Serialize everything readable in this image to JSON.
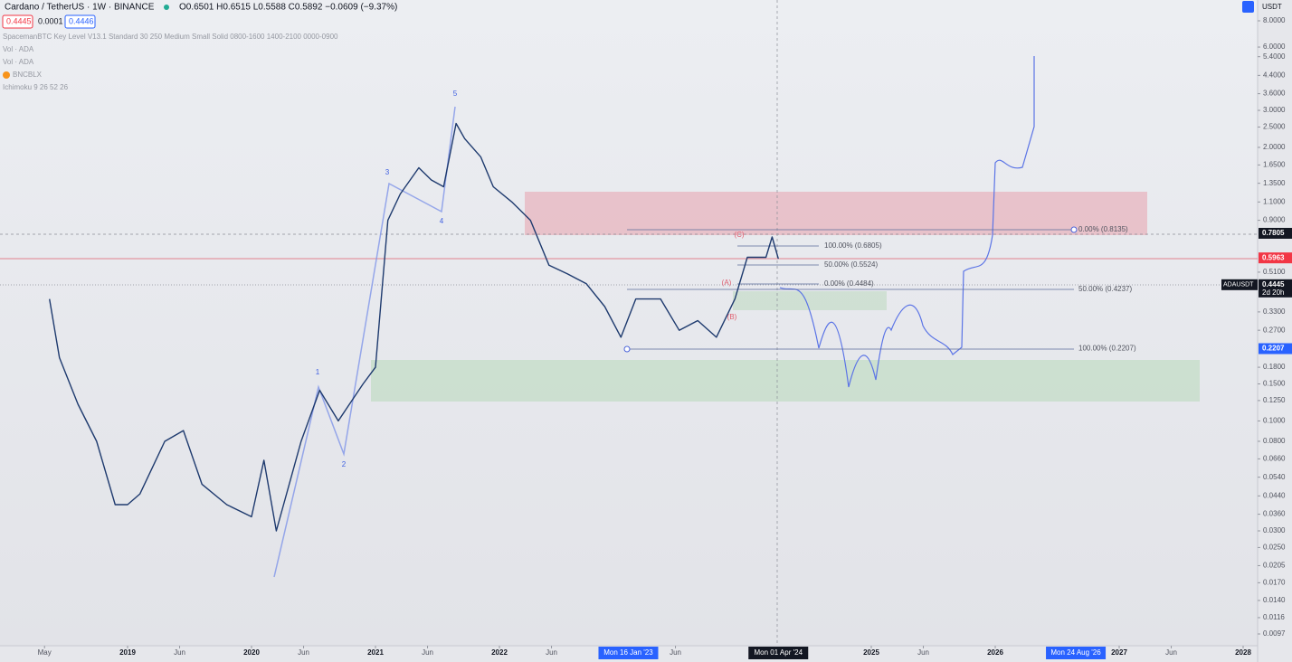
{
  "header": {
    "symbol": "Cardano / TetherUS · 1W · BINANCE",
    "ohlc": "O0.6501 H0.6515 L0.5588 C0.5892 −0.0609 (−9.37%)",
    "bid": "0.4445",
    "spread": "0.0001",
    "ask": "0.4446",
    "currency": "USDT"
  },
  "indicators": [
    "SpacemanBTC Key Level V13.1 Standard 30 250 Medium Small Solid 0800-1600 1400-2100 0000-0900",
    "Vol · ADA",
    "Vol · ADA",
    "BNCBLX",
    "Ichimoku 9 26 52 26"
  ],
  "wave_labels": [
    "1",
    "2",
    "3",
    "4",
    "5",
    "(A)",
    "(B)",
    "(C)"
  ],
  "chart_data": {
    "type": "line",
    "log_scale": true,
    "series": [
      {
        "name": "ADAUSDT",
        "color": "#1e3a6e",
        "x": [
          2018.37,
          2018.45,
          2018.6,
          2018.75,
          2018.9,
          2019.0,
          2019.1,
          2019.3,
          2019.45,
          2019.6,
          2019.8,
          2020.0,
          2020.1,
          2020.2,
          2020.4,
          2020.55,
          2020.7,
          2020.9,
          2021.0,
          2021.1,
          2021.2,
          2021.35,
          2021.45,
          2021.55,
          2021.65,
          2021.72,
          2021.85,
          2021.95,
          2022.1,
          2022.25,
          2022.4,
          2022.55,
          2022.7,
          2022.85,
          2022.98,
          2023.1,
          2023.3,
          2023.45,
          2023.6,
          2023.75,
          2023.9,
          2024.0,
          2024.15,
          2024.2,
          2024.25
        ],
        "values": [
          0.38,
          0.2,
          0.12,
          0.08,
          0.04,
          0.04,
          0.045,
          0.08,
          0.09,
          0.05,
          0.04,
          0.035,
          0.065,
          0.03,
          0.08,
          0.14,
          0.1,
          0.15,
          0.18,
          0.9,
          1.2,
          1.6,
          1.4,
          1.3,
          2.6,
          2.2,
          1.8,
          1.3,
          1.1,
          0.9,
          0.55,
          0.5,
          0.45,
          0.35,
          0.25,
          0.38,
          0.38,
          0.27,
          0.3,
          0.25,
          0.38,
          0.6,
          0.6,
          0.75,
          0.59
        ]
      }
    ],
    "yticks": [
      {
        "value": 8,
        "label": "8.0000"
      },
      {
        "value": 6,
        "label": "6.0000"
      },
      {
        "value": 5.4,
        "label": "5.4000"
      },
      {
        "value": 4.4,
        "label": "4.4000"
      },
      {
        "value": 3.6,
        "label": "3.6000"
      },
      {
        "value": 3,
        "label": "3.0000"
      },
      {
        "value": 2.5,
        "label": "2.5000"
      },
      {
        "value": 2,
        "label": "2.0000"
      },
      {
        "value": 1.65,
        "label": "1.6500"
      },
      {
        "value": 1.35,
        "label": "1.3500"
      },
      {
        "value": 1.1,
        "label": "1.1000"
      },
      {
        "value": 0.9,
        "label": "0.9000"
      },
      {
        "value": 0.51,
        "label": "0.5100"
      },
      {
        "value": 0.33,
        "label": "0.3300"
      },
      {
        "value": 0.27,
        "label": "0.2700"
      },
      {
        "value": 0.18,
        "label": "0.1800"
      },
      {
        "value": 0.15,
        "label": "0.1500"
      },
      {
        "value": 0.125,
        "label": "0.1250"
      },
      {
        "value": 0.1,
        "label": "0.1000"
      },
      {
        "value": 0.08,
        "label": "0.0800"
      },
      {
        "value": 0.066,
        "label": "0.0660"
      },
      {
        "value": 0.054,
        "label": "0.0540"
      },
      {
        "value": 0.044,
        "label": "0.0440"
      },
      {
        "value": 0.036,
        "label": "0.0360"
      },
      {
        "value": 0.03,
        "label": "0.0300"
      },
      {
        "value": 0.025,
        "label": "0.0250"
      },
      {
        "value": 0.0205,
        "label": "0.0205"
      },
      {
        "value": 0.017,
        "label": "0.0170"
      },
      {
        "value": 0.014,
        "label": "0.0140"
      },
      {
        "value": 0.0116,
        "label": "0.0116"
      },
      {
        "value": 0.0097,
        "label": "0.0097"
      }
    ],
    "xticks": [
      {
        "value": 2018.33,
        "label": "May"
      },
      {
        "value": 2019,
        "label": "2019"
      },
      {
        "value": 2019.42,
        "label": "Jun"
      },
      {
        "value": 2020,
        "label": "2020"
      },
      {
        "value": 2020.42,
        "label": "Jun"
      },
      {
        "value": 2021,
        "label": "2021"
      },
      {
        "value": 2021.42,
        "label": "Jun"
      },
      {
        "value": 2022,
        "label": "2022"
      },
      {
        "value": 2022.42,
        "label": "Jun"
      },
      {
        "value": 2023.42,
        "label": "Jun"
      },
      {
        "value": 2025,
        "label": "2025"
      },
      {
        "value": 2025.42,
        "label": "Jun"
      },
      {
        "value": 2026,
        "label": "2026"
      },
      {
        "value": 2027,
        "label": "2027"
      },
      {
        "value": 2027.42,
        "label": "Jun"
      },
      {
        "value": 2028,
        "label": "2028"
      }
    ],
    "time_markers": [
      {
        "value": 2023.04,
        "label": "Mon 16 Jan '23"
      },
      {
        "value": 2024.25,
        "label": "Mon 01 Apr '24"
      },
      {
        "value": 2026.65,
        "label": "Mon 24 Aug '26"
      }
    ],
    "fib_levels": [
      {
        "value": 0.6805,
        "label": "100.00% (0.6805)"
      },
      {
        "value": 0.5524,
        "label": "50.00% (0.5524)"
      },
      {
        "value": 0.4484,
        "label": "0.00% (0.4484)"
      },
      {
        "value": 0.8135,
        "label": "0.00% (0.8135)"
      },
      {
        "value": 0.4237,
        "label": "50.00% (0.4237)"
      },
      {
        "value": 0.2207,
        "label": "100.00% (0.2207)"
      }
    ],
    "price_labels": [
      {
        "value": 0.7805,
        "label": "0.7805",
        "color": "#131722"
      },
      {
        "value": 0.5963,
        "label": "0.5963",
        "color": "#f23645"
      },
      {
        "value": 0.2207,
        "label": "0.2207",
        "color": "#2962ff"
      }
    ],
    "last_price": {
      "symbol": "ADAUSDT",
      "value": 0.4445,
      "label": "0.4445",
      "countdown": "2d 20h"
    }
  }
}
